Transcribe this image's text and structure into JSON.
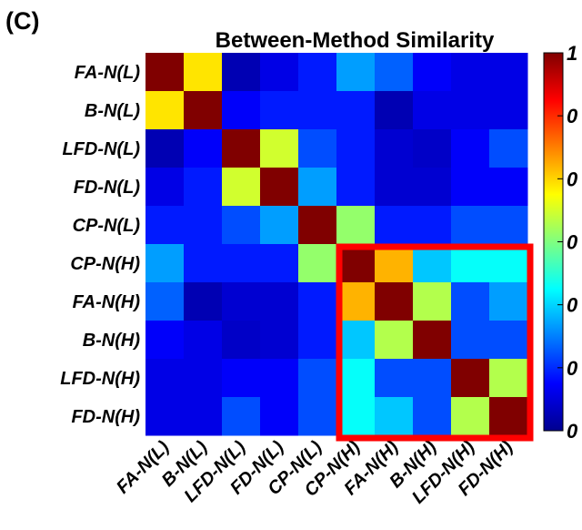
{
  "panel_label": "(C)",
  "chart_data": {
    "type": "heatmap",
    "title": "Between-Method Similarity",
    "labels": [
      "FA-N(L)",
      "B-N(L)",
      "LFD-N(L)",
      "FD-N(L)",
      "CP-N(L)",
      "CP-N(H)",
      "FA-N(H)",
      "B-N(H)",
      "LFD-N(H)",
      "FD-N(H)"
    ],
    "values": [
      [
        1.0,
        0.65,
        0.05,
        0.1,
        0.15,
        0.28,
        0.22,
        0.12,
        0.1,
        0.1
      ],
      [
        0.65,
        1.0,
        0.12,
        0.15,
        0.15,
        0.15,
        0.05,
        0.1,
        0.1,
        0.1
      ],
      [
        0.05,
        0.12,
        1.0,
        0.58,
        0.2,
        0.15,
        0.08,
        0.07,
        0.12,
        0.2
      ],
      [
        0.1,
        0.15,
        0.58,
        1.0,
        0.28,
        0.15,
        0.08,
        0.08,
        0.12,
        0.12
      ],
      [
        0.15,
        0.15,
        0.2,
        0.28,
        1.0,
        0.52,
        0.15,
        0.15,
        0.2,
        0.2
      ],
      [
        0.28,
        0.15,
        0.15,
        0.15,
        0.52,
        1.0,
        0.7,
        0.32,
        0.38,
        0.38
      ],
      [
        0.22,
        0.05,
        0.08,
        0.08,
        0.15,
        0.7,
        1.0,
        0.55,
        0.2,
        0.28
      ],
      [
        0.12,
        0.1,
        0.07,
        0.08,
        0.15,
        0.32,
        0.55,
        1.0,
        0.2,
        0.2
      ],
      [
        0.1,
        0.1,
        0.12,
        0.12,
        0.2,
        0.38,
        0.2,
        0.2,
        1.0,
        0.55
      ],
      [
        0.1,
        0.1,
        0.2,
        0.12,
        0.2,
        0.38,
        0.32,
        0.2,
        0.55,
        1.0
      ]
    ],
    "colormap": "jet",
    "clim": [
      0,
      1
    ],
    "colorbar_ticks": [
      "1",
      "0",
      "0",
      "0",
      "0",
      "0",
      "0"
    ],
    "highlight": {
      "from_label": "CP-N(H)",
      "to_label": "FD-N(H)",
      "color": "#ff0000"
    },
    "grid": false
  }
}
